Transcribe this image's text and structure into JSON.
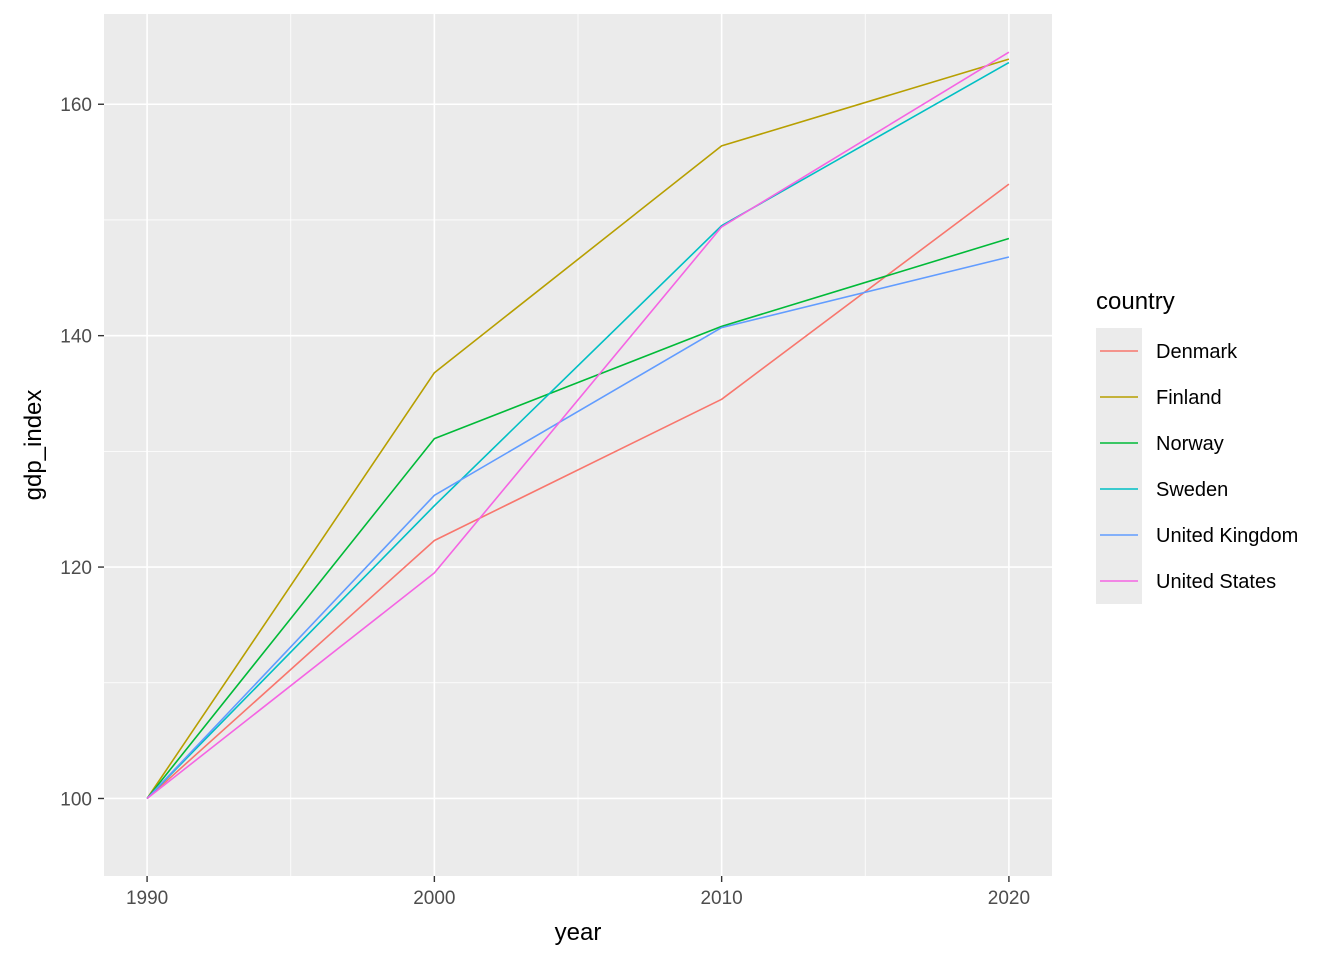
{
  "chart_data": {
    "type": "line",
    "title": "",
    "xlabel": "year",
    "ylabel": "gdp_index",
    "x": [
      1990,
      2000,
      2010,
      2020
    ],
    "xlim": [
      1988.5,
      2021.5
    ],
    "ylim": [
      93.3,
      167.8
    ],
    "x_ticks": [
      1990,
      2000,
      2010,
      2020
    ],
    "x_minor": [
      1995,
      2005,
      2015
    ],
    "y_ticks": [
      100,
      120,
      140,
      160
    ],
    "y_minor": [
      110,
      130,
      150
    ],
    "grid": true,
    "panel_background": "#EBEBEB",
    "legend": {
      "title": "country",
      "position": "right"
    },
    "series": [
      {
        "name": "Denmark",
        "color": "#F8766D",
        "values": [
          100,
          122.3,
          134.5,
          153.1
        ]
      },
      {
        "name": "Finland",
        "color": "#B79F00",
        "values": [
          100,
          136.8,
          156.4,
          163.9
        ]
      },
      {
        "name": "Norway",
        "color": "#00BA38",
        "values": [
          100,
          131.1,
          140.8,
          148.4
        ]
      },
      {
        "name": "Sweden",
        "color": "#00BFC4",
        "values": [
          100,
          125.3,
          149.5,
          163.6
        ]
      },
      {
        "name": "United Kingdom",
        "color": "#619CFF",
        "values": [
          100,
          126.2,
          140.7,
          146.8
        ]
      },
      {
        "name": "United States",
        "color": "#F564E3",
        "values": [
          100,
          119.5,
          149.4,
          164.5
        ]
      }
    ]
  }
}
